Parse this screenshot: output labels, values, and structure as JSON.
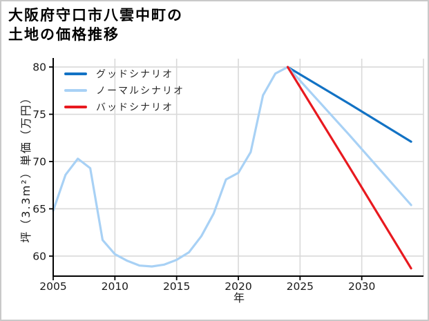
{
  "figure": {
    "background": "#ffffff",
    "border_color": "#c9c9c9"
  },
  "title": {
    "line1": "大阪府守口市八雲中町の",
    "line2": "土地の価格推移"
  },
  "chart_data": {
    "type": "line",
    "title": "大阪府守口市八雲中町の土地の価格推移",
    "xlabel": "年",
    "ylabel": "坪（3.3m²）単価（万円）",
    "xlim": [
      2005,
      2035
    ],
    "ylim": [
      57.88,
      80.88
    ],
    "x_ticks": [
      2005,
      2010,
      2015,
      2020,
      2025,
      2030
    ],
    "y_ticks": [
      60,
      65,
      70,
      75,
      80
    ],
    "grid": true,
    "grid_x": [
      2010,
      2015,
      2020,
      2025,
      2030,
      2035
    ],
    "grid_color": "#d9d9d9",
    "axis_color": "#000000",
    "tick_label_color": "#1a1a1a",
    "legend_position": "upper-left",
    "series": [
      {
        "name": "グッドシナリオ",
        "color": "#1272c4",
        "x": [
          2024,
          2029,
          2034
        ],
        "values": [
          80.0,
          76.1,
          72.1
        ]
      },
      {
        "name": "ノーマルシナリオ",
        "color": "#a8d1f5",
        "x": [
          2005,
          2006,
          2007,
          2008,
          2009,
          2010,
          2011,
          2012,
          2013,
          2014,
          2015,
          2016,
          2017,
          2018,
          2019,
          2020,
          2021,
          2022,
          2023,
          2024,
          2029,
          2034
        ],
        "values": [
          64.8,
          68.6,
          70.3,
          69.3,
          61.7,
          60.2,
          59.5,
          59.0,
          58.9,
          59.1,
          59.6,
          60.4,
          62.1,
          64.5,
          68.1,
          68.8,
          71.0,
          77.0,
          79.3,
          80.0,
          72.8,
          65.4
        ]
      },
      {
        "name": "バッドシナリオ",
        "color": "#e8191f",
        "x": [
          2024,
          2029,
          2034
        ],
        "values": [
          80.0,
          69.4,
          58.7
        ]
      }
    ]
  }
}
